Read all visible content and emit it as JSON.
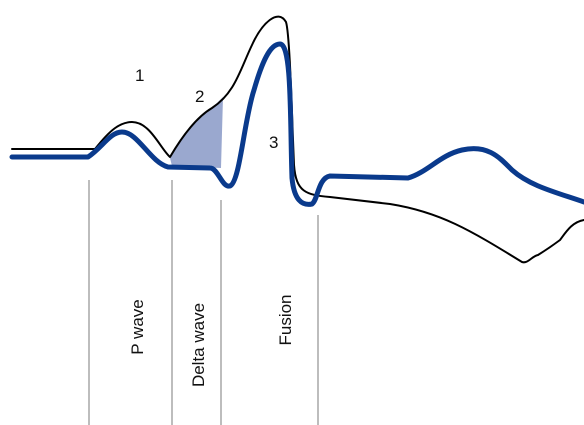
{
  "markers": [
    "1",
    "2",
    "3"
  ],
  "segments": [
    "P wave",
    "Delta wave",
    "Fusion"
  ],
  "colors": {
    "thin_trace": "#000000",
    "thick_trace": "#0a3a8c",
    "delta_fill": "#9aa8cf",
    "divider": "#bdbdbd"
  }
}
